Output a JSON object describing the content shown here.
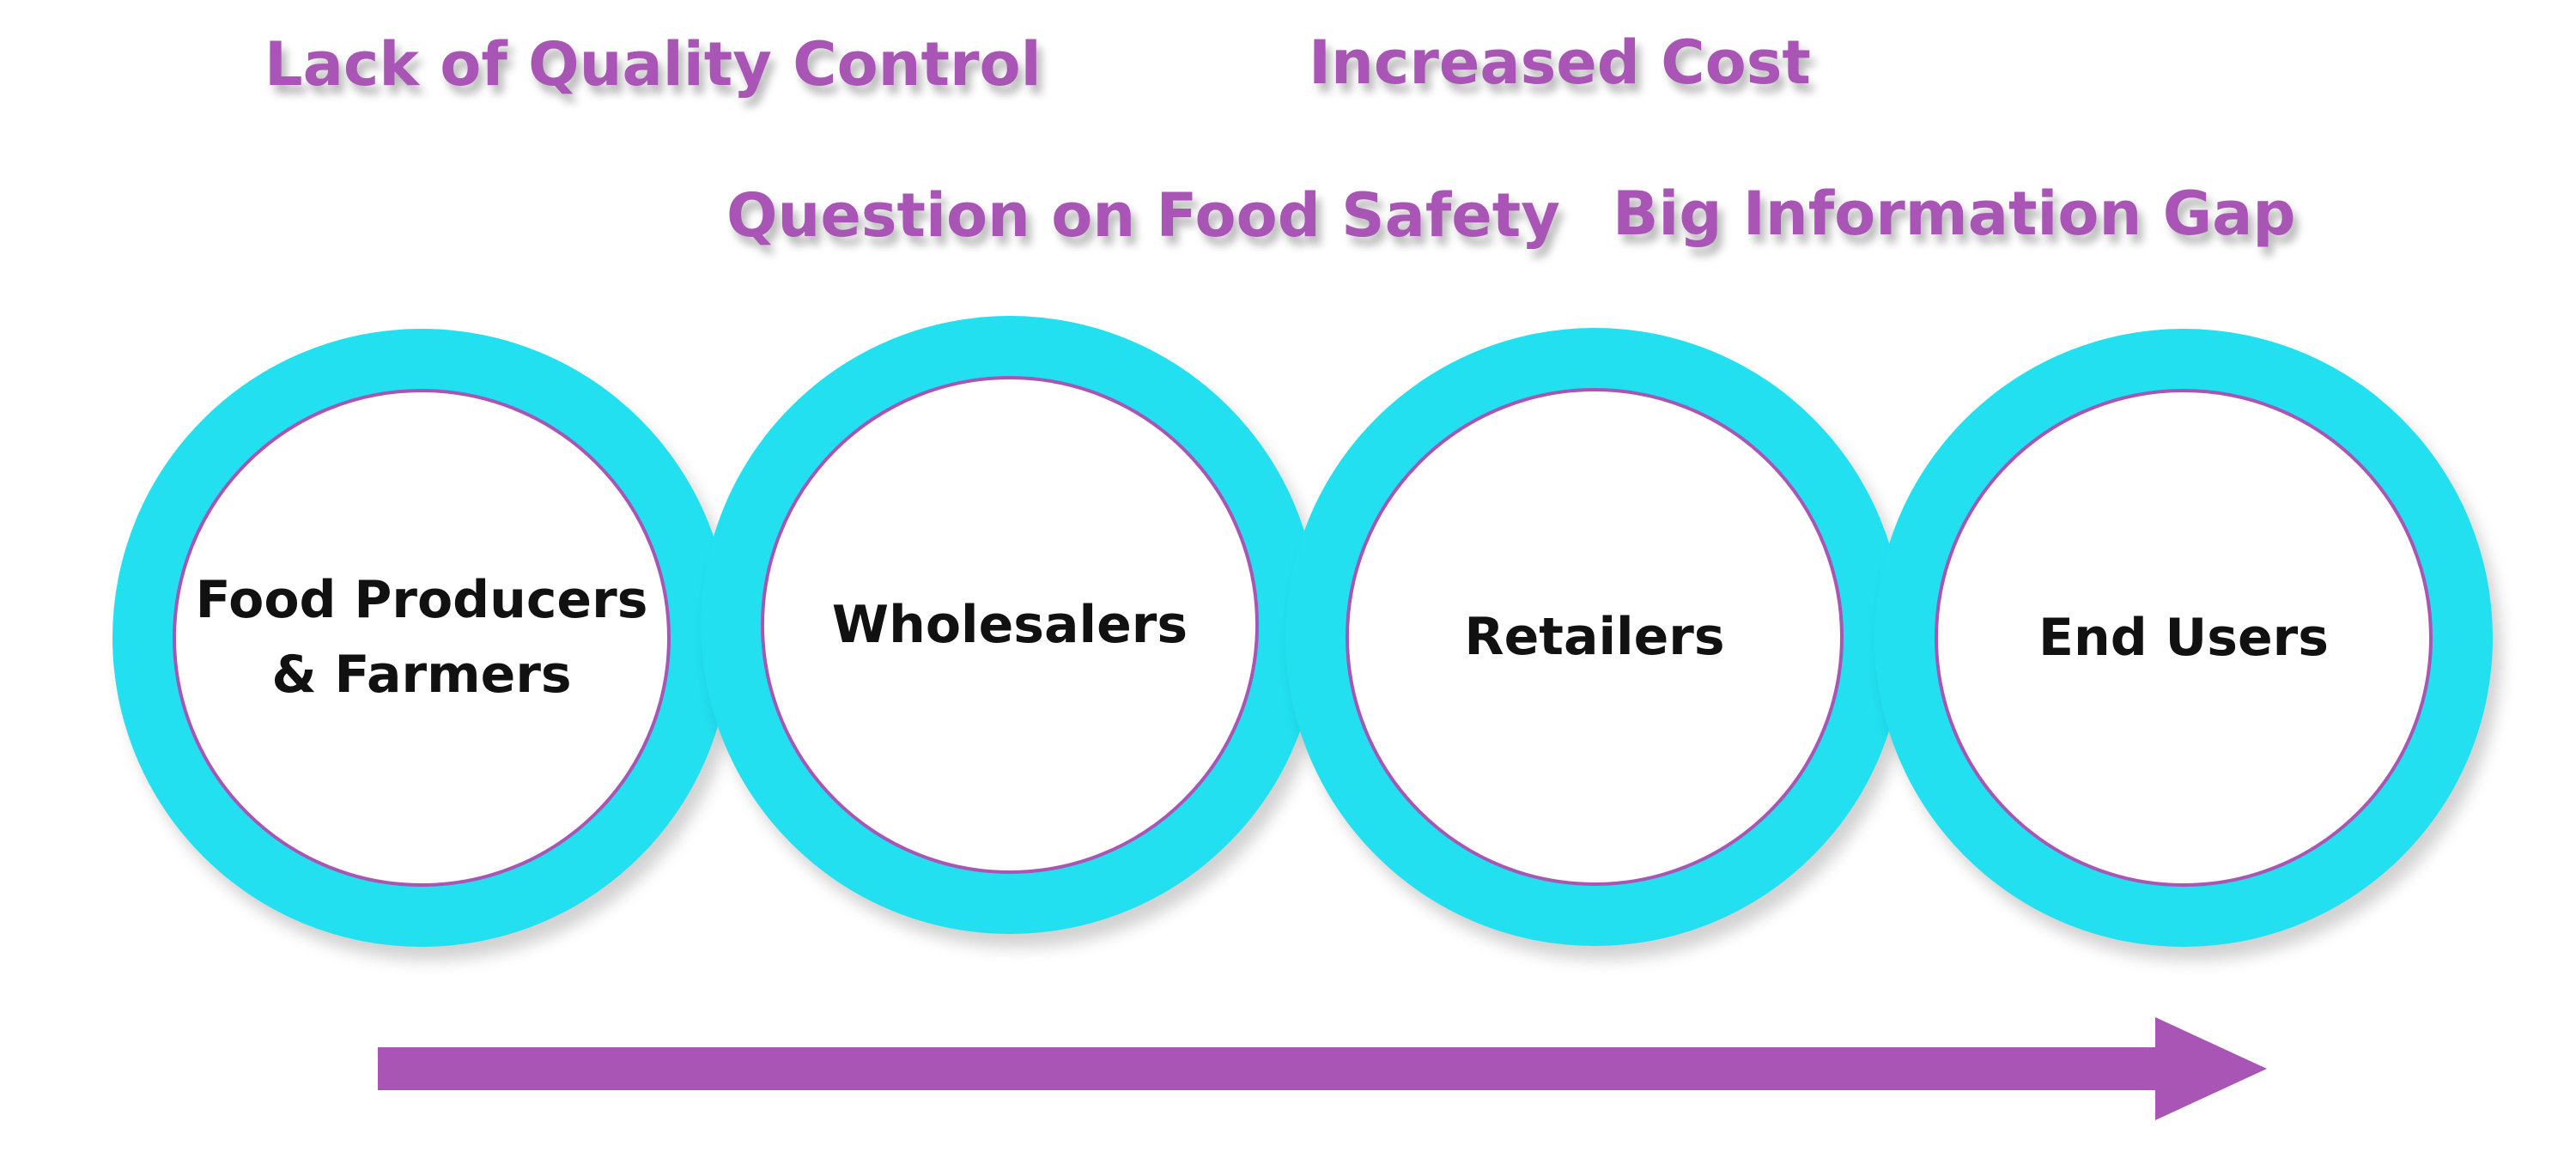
{
  "issues": {
    "quality": "Lack of Quality Control",
    "cost": "Increased Cost",
    "safety": "Question on Food Safety",
    "info_gap": "Big Information Gap"
  },
  "stages": [
    {
      "label": "Food Producers\n& Farmers"
    },
    {
      "label": "Wholesalers"
    },
    {
      "label": "Retailers"
    },
    {
      "label": "End Users"
    }
  ],
  "colors": {
    "ring": "#22e0ef",
    "accent": "#a855b5",
    "inner": "#ffffff",
    "stage_text": "#111111"
  },
  "flow": {
    "direction": "left-to-right",
    "icon": "right-arrow-icon"
  }
}
